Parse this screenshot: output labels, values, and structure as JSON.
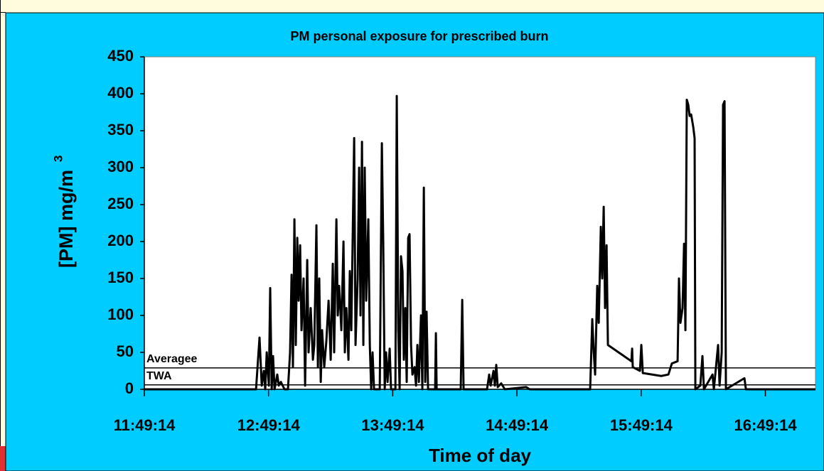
{
  "chart_data": {
    "type": "line",
    "title": "PM personal exposure for prescribed burn",
    "x_label": "Time of day",
    "y_label": "[PM] mg/m",
    "y_label_sup": "3",
    "xlim": [
      11.8206,
      17.224
    ],
    "xticks": [
      {
        "value": 11.8206,
        "label": "11:49:14"
      },
      {
        "value": 12.8206,
        "label": "12:49:14"
      },
      {
        "value": 13.8206,
        "label": "13:49:14"
      },
      {
        "value": 14.8206,
        "label": "14:49:14"
      },
      {
        "value": 15.8206,
        "label": "15:49:14"
      },
      {
        "value": 16.8206,
        "label": "16:49:14"
      }
    ],
    "ylim": [
      0,
      450
    ],
    "yticks": [
      0,
      50,
      100,
      150,
      200,
      250,
      300,
      350,
      400,
      450
    ],
    "grid": false,
    "reference_lines": [
      {
        "label": "Averagee",
        "value": 29
      },
      {
        "label": "TWA",
        "value": 6
      }
    ],
    "series": [
      {
        "name": "PM",
        "color": "#000000",
        "x": [
          11.821,
          12.72,
          12.748,
          12.766,
          12.783,
          12.794,
          12.806,
          12.823,
          12.834,
          12.846,
          12.857,
          12.869,
          12.891,
          12.903,
          12.92,
          12.949,
          12.977,
          12.994,
          13.006,
          13.017,
          13.029,
          13.04,
          13.052,
          13.063,
          13.075,
          13.086,
          13.103,
          13.115,
          13.132,
          13.143,
          13.16,
          13.178,
          13.189,
          13.206,
          13.218,
          13.229,
          13.241,
          13.252,
          13.269,
          13.286,
          13.304,
          13.321,
          13.338,
          13.349,
          13.367,
          13.378,
          13.389,
          13.407,
          13.424,
          13.435,
          13.447,
          13.464,
          13.475,
          13.487,
          13.51,
          13.521,
          13.538,
          13.55,
          13.561,
          13.573,
          13.584,
          13.595,
          13.607,
          13.624,
          13.636,
          13.647,
          13.658,
          13.67,
          13.716,
          13.733,
          13.744,
          13.756,
          13.767,
          13.779,
          13.796,
          13.807,
          13.842,
          13.853,
          13.865,
          13.876,
          13.887,
          13.899,
          13.91,
          13.922,
          13.933,
          13.945,
          13.956,
          13.968,
          13.979,
          13.996,
          14.008,
          14.019,
          14.031,
          14.048,
          14.059,
          14.071,
          14.082,
          14.093,
          14.105,
          14.162,
          14.168,
          14.174,
          14.368,
          14.38,
          14.391,
          14.58,
          14.597,
          14.609,
          14.632,
          14.643,
          14.654,
          14.666,
          14.694,
          14.723,
          14.895,
          14.923,
          15.41,
          15.427,
          15.439,
          15.45,
          15.467,
          15.479,
          15.496,
          15.507,
          15.519,
          15.53,
          15.542,
          15.553,
          15.639,
          15.742,
          15.748,
          15.753,
          15.811,
          15.822,
          15.834,
          15.982,
          16.04,
          16.068,
          16.114,
          16.125,
          16.137,
          16.154,
          16.166,
          16.177,
          16.188,
          16.2,
          16.211,
          16.223,
          16.24,
          16.251,
          16.257,
          16.297,
          16.314,
          16.326,
          16.395,
          16.406,
          16.44,
          16.452,
          16.469,
          16.48,
          16.492,
          16.503,
          16.652,
          16.664,
          17.224
        ],
        "values": [
          0,
          0,
          70,
          5,
          25,
          0,
          50,
          5,
          137,
          0,
          45,
          0,
          20,
          5,
          10,
          0,
          0,
          50,
          155,
          30,
          230,
          60,
          205,
          120,
          195,
          80,
          150,
          5,
          175,
          50,
          110,
          40,
          60,
          222,
          30,
          150,
          10,
          80,
          30,
          65,
          120,
          40,
          170,
          50,
          230,
          100,
          140,
          80,
          200,
          50,
          110,
          40,
          160,
          80,
          340,
          60,
          150,
          300,
          100,
          335,
          60,
          300,
          120,
          230,
          60,
          0,
          50,
          0,
          0,
          333,
          200,
          0,
          50,
          10,
          55,
          0,
          0,
          397,
          80,
          0,
          180,
          160,
          40,
          110,
          10,
          205,
          210,
          60,
          20,
          30,
          5,
          60,
          10,
          100,
          0,
          273,
          10,
          105,
          0,
          0,
          76,
          0,
          0,
          121,
          0,
          0,
          20,
          5,
          25,
          5,
          33,
          3,
          8,
          0,
          3,
          0,
          0,
          95,
          50,
          20,
          140,
          90,
          220,
          150,
          247,
          110,
          195,
          60,
          50,
          38,
          55,
          30,
          25,
          60,
          22,
          18,
          20,
          35,
          38,
          150,
          90,
          110,
          197,
          80,
          392,
          385,
          370,
          372,
          355,
          340,
          0,
          5,
          45,
          0,
          20,
          0,
          60,
          5,
          50,
          385,
          390,
          0,
          15,
          0,
          0
        ]
      }
    ]
  }
}
